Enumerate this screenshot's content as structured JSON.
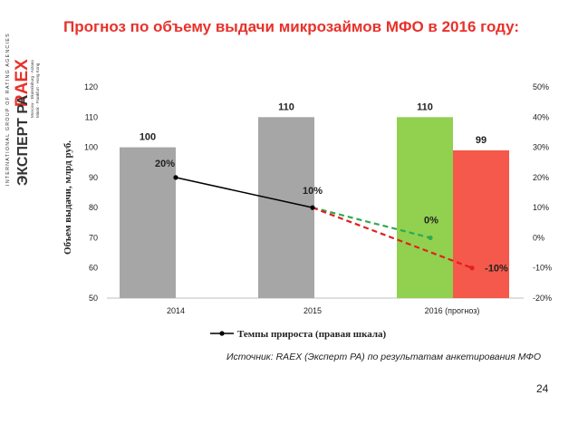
{
  "logo": {
    "vertical_line": "INTERNATIONAL GROUP OF RATING AGENCIES",
    "brand": "RAEX",
    "brand_ru": "ЭКСПЕРТ РА",
    "cities_1": "Moscow · Ekaterinburg · Astana",
    "cities_2": "Minsk · Frankfurt · Hong Kong"
  },
  "slide": {
    "title": "Прогноз по объему выдачи микрозаймов МФО в 2016 году:",
    "source": "Источник: RAEX (Эксперт РА) по результатам анкетирования МФО",
    "page_number": "24"
  },
  "colors": {
    "title": "#e8312a",
    "bar_gray": "#a6a6a6",
    "bar_green": "#92d050",
    "bar_red": "#f4594b",
    "line_black": "#000000",
    "dash_green": "#2eaa4f",
    "dash_red": "#e02020"
  },
  "chart_data": {
    "type": "bar",
    "categories": [
      "2014",
      "2015",
      "2016 (прогноз)"
    ],
    "bars": [
      {
        "category": "2014",
        "value": 100,
        "label": "100",
        "color": "gray"
      },
      {
        "category": "2015",
        "value": 110,
        "label": "110",
        "color": "gray"
      },
      {
        "category": "2016 (прогноз)",
        "value": 110,
        "label": "110",
        "color": "green"
      },
      {
        "category": "2016 (прогноз)",
        "value": 99,
        "label": "99",
        "color": "red"
      }
    ],
    "ylabel": "Объем выдачи, млрд руб.",
    "ylim": [
      50,
      120
    ],
    "yticks": [
      "120",
      "110",
      "100",
      "90",
      "80",
      "70",
      "60",
      "50"
    ],
    "y2lim": [
      -20,
      50
    ],
    "y2ticks": [
      "50%",
      "40%",
      "30%",
      "20%",
      "10%",
      "0%",
      "-10%",
      "-20%"
    ],
    "growth_line": {
      "name": "Темпы прироста (правая шкала)",
      "points": [
        {
          "x": "2014",
          "value": 20,
          "label": "20%"
        },
        {
          "x": "2015",
          "value": 10,
          "label": "10%"
        }
      ]
    },
    "forecast_lines": [
      {
        "from": "2015",
        "to": "2016 (прогноз)",
        "value_from": 10,
        "value_to": 0,
        "label": "0%",
        "style": "dashed",
        "color": "green"
      },
      {
        "from": "2015",
        "to": "2016 (прогноз)",
        "value_from": 10,
        "value_to": -10,
        "label": "-10%",
        "style": "dashed",
        "color": "red"
      }
    ],
    "grid": false,
    "legend_position": "bottom"
  }
}
